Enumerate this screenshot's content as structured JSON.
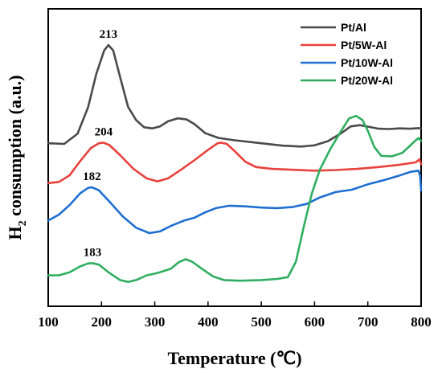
{
  "chart_data": {
    "type": "line",
    "xlabel": "Temperature (℃)",
    "ylabel_main": "H",
    "ylabel_sub": "2",
    "ylabel_rest": " consumption (a.u.)",
    "xlim": [
      100,
      800
    ],
    "xticks": [
      100,
      200,
      300,
      400,
      500,
      600,
      700,
      800
    ],
    "legend_position": "top-right",
    "grid": false,
    "series": [
      {
        "name": "Pt/Al",
        "color": "#4a4a4a",
        "points": [
          [
            100,
            0.548
          ],
          [
            130,
            0.546
          ],
          [
            155,
            0.58
          ],
          [
            175,
            0.67
          ],
          [
            190,
            0.78
          ],
          [
            205,
            0.86
          ],
          [
            213,
            0.878
          ],
          [
            222,
            0.86
          ],
          [
            235,
            0.77
          ],
          [
            250,
            0.67
          ],
          [
            265,
            0.626
          ],
          [
            280,
            0.602
          ],
          [
            295,
            0.598
          ],
          [
            310,
            0.605
          ],
          [
            325,
            0.622
          ],
          [
            343,
            0.632
          ],
          [
            360,
            0.628
          ],
          [
            375,
            0.612
          ],
          [
            395,
            0.582
          ],
          [
            420,
            0.566
          ],
          [
            450,
            0.558
          ],
          [
            500,
            0.548
          ],
          [
            540,
            0.54
          ],
          [
            575,
            0.537
          ],
          [
            600,
            0.541
          ],
          [
            625,
            0.555
          ],
          [
            650,
            0.582
          ],
          [
            668,
            0.605
          ],
          [
            685,
            0.609
          ],
          [
            700,
            0.604
          ],
          [
            720,
            0.597
          ],
          [
            740,
            0.596
          ],
          [
            760,
            0.598
          ],
          [
            780,
            0.597
          ],
          [
            795,
            0.599
          ],
          [
            800,
            0.598
          ]
        ]
      },
      {
        "name": "Pt/5W-Al",
        "color": "#e8413c",
        "points": [
          [
            100,
            0.414
          ],
          [
            120,
            0.418
          ],
          [
            140,
            0.44
          ],
          [
            160,
            0.488
          ],
          [
            180,
            0.532
          ],
          [
            195,
            0.548
          ],
          [
            204,
            0.55
          ],
          [
            215,
            0.542
          ],
          [
            235,
            0.508
          ],
          [
            260,
            0.462
          ],
          [
            285,
            0.43
          ],
          [
            305,
            0.42
          ],
          [
            325,
            0.43
          ],
          [
            350,
            0.46
          ],
          [
            375,
            0.492
          ],
          [
            400,
            0.526
          ],
          [
            418,
            0.548
          ],
          [
            425,
            0.55
          ],
          [
            435,
            0.546
          ],
          [
            450,
            0.522
          ],
          [
            470,
            0.486
          ],
          [
            490,
            0.468
          ],
          [
            520,
            0.462
          ],
          [
            560,
            0.459
          ],
          [
            600,
            0.456
          ],
          [
            640,
            0.458
          ],
          [
            680,
            0.462
          ],
          [
            720,
            0.468
          ],
          [
            760,
            0.476
          ],
          [
            790,
            0.484
          ],
          [
            797,
            0.494
          ],
          [
            800,
            0.478
          ]
        ]
      },
      {
        "name": "Pt/10W-Al",
        "color": "#1f6fd1",
        "points": [
          [
            100,
            0.288
          ],
          [
            120,
            0.308
          ],
          [
            140,
            0.34
          ],
          [
            160,
            0.38
          ],
          [
            175,
            0.398
          ],
          [
            182,
            0.4
          ],
          [
            195,
            0.39
          ],
          [
            215,
            0.352
          ],
          [
            240,
            0.302
          ],
          [
            265,
            0.264
          ],
          [
            290,
            0.246
          ],
          [
            310,
            0.252
          ],
          [
            330,
            0.27
          ],
          [
            355,
            0.288
          ],
          [
            375,
            0.298
          ],
          [
            395,
            0.316
          ],
          [
            415,
            0.33
          ],
          [
            440,
            0.338
          ],
          [
            470,
            0.336
          ],
          [
            500,
            0.332
          ],
          [
            530,
            0.33
          ],
          [
            560,
            0.334
          ],
          [
            585,
            0.344
          ],
          [
            610,
            0.366
          ],
          [
            640,
            0.384
          ],
          [
            670,
            0.392
          ],
          [
            700,
            0.41
          ],
          [
            730,
            0.424
          ],
          [
            760,
            0.44
          ],
          [
            780,
            0.452
          ],
          [
            795,
            0.456
          ],
          [
            798,
            0.44
          ],
          [
            800,
            0.39
          ]
        ]
      },
      {
        "name": "Pt/20W-Al",
        "color": "#2fae5f",
        "points": [
          [
            100,
            0.104
          ],
          [
            120,
            0.104
          ],
          [
            140,
            0.114
          ],
          [
            160,
            0.134
          ],
          [
            175,
            0.144
          ],
          [
            183,
            0.145
          ],
          [
            195,
            0.14
          ],
          [
            215,
            0.112
          ],
          [
            235,
            0.088
          ],
          [
            250,
            0.082
          ],
          [
            265,
            0.088
          ],
          [
            285,
            0.104
          ],
          [
            305,
            0.112
          ],
          [
            330,
            0.126
          ],
          [
            345,
            0.148
          ],
          [
            358,
            0.158
          ],
          [
            370,
            0.15
          ],
          [
            390,
            0.124
          ],
          [
            410,
            0.1
          ],
          [
            430,
            0.088
          ],
          [
            460,
            0.086
          ],
          [
            500,
            0.088
          ],
          [
            530,
            0.092
          ],
          [
            550,
            0.098
          ],
          [
            565,
            0.15
          ],
          [
            580,
            0.27
          ],
          [
            595,
            0.38
          ],
          [
            610,
            0.46
          ],
          [
            630,
            0.53
          ],
          [
            650,
            0.59
          ],
          [
            665,
            0.632
          ],
          [
            678,
            0.64
          ],
          [
            690,
            0.626
          ],
          [
            700,
            0.59
          ],
          [
            712,
            0.536
          ],
          [
            725,
            0.506
          ],
          [
            745,
            0.504
          ],
          [
            765,
            0.516
          ],
          [
            785,
            0.55
          ],
          [
            795,
            0.566
          ],
          [
            800,
            0.556
          ]
        ]
      }
    ],
    "annotations": [
      {
        "text": "213",
        "x": 213,
        "y": 0.878
      },
      {
        "text": "204",
        "x": 204,
        "y": 0.55
      },
      {
        "text": "182",
        "x": 182,
        "y": 0.4
      },
      {
        "text": "183",
        "x": 183,
        "y": 0.145
      }
    ]
  }
}
